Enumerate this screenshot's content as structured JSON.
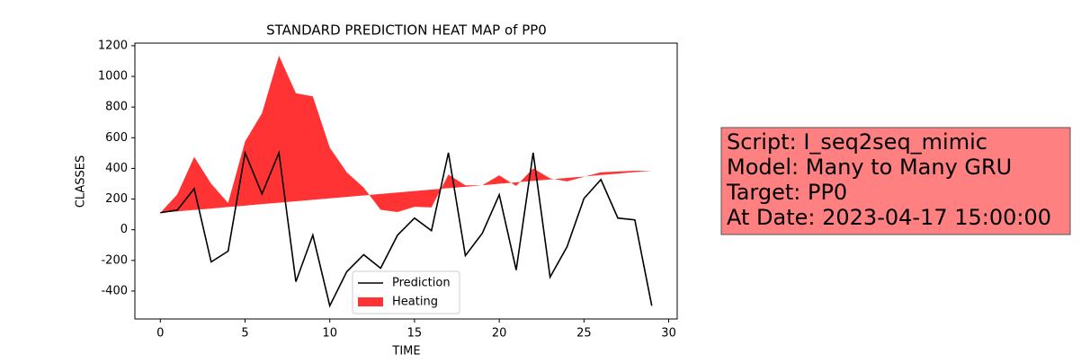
{
  "chart_data": {
    "type": "line_band",
    "title": "STANDARD PREDICTION HEAT MAP of PP0",
    "xlabel": "TIME",
    "ylabel": "CLASSES",
    "x": [
      0,
      1,
      2,
      3,
      4,
      5,
      6,
      7,
      8,
      9,
      10,
      11,
      12,
      13,
      14,
      15,
      16,
      17,
      18,
      19,
      20,
      21,
      22,
      23,
      24,
      25,
      26,
      27,
      28,
      29
    ],
    "series": [
      {
        "name": "Prediction",
        "color": "#000000",
        "values": [
          111,
          128,
          268,
          -210,
          -140,
          502,
          234,
          502,
          -339,
          -35,
          -496,
          -274,
          -163,
          -251,
          -35,
          76,
          -6,
          502,
          -169,
          -23,
          228,
          -263,
          502,
          -309,
          -111,
          204,
          327,
          76,
          64,
          -496
        ]
      },
      {
        "name": "Heating",
        "color": "#ff3333",
        "y1": [
          110,
          120,
          129,
          138,
          148,
          157,
          167,
          176,
          186,
          195,
          205,
          214,
          224,
          233,
          243,
          252,
          262,
          271,
          280,
          290,
          300,
          309,
          319,
          328,
          338,
          347,
          357,
          366,
          376,
          385
        ],
        "y2": [
          110,
          230,
          475,
          300,
          175,
          575,
          760,
          1135,
          890,
          870,
          535,
          375,
          275,
          130,
          115,
          150,
          145,
          360,
          290,
          290,
          355,
          285,
          400,
          335,
          315,
          345,
          375,
          380,
          385,
          385
        ]
      }
    ],
    "xlim": [
      -1.5,
      30.5
    ],
    "xticks": [
      0,
      5,
      10,
      15,
      20,
      25,
      30
    ],
    "ylim": [
      -582,
      1217
    ],
    "yticks": [
      -400,
      -200,
      0,
      200,
      400,
      600,
      800,
      1000,
      1200
    ],
    "legend": "lower center"
  },
  "info_box": {
    "lines": [
      "Script: I_seq2seq_mimic",
      "Model: Many to Many GRU",
      "Target: PP0",
      "At Date: 2023-04-17 15:00:00"
    ]
  }
}
